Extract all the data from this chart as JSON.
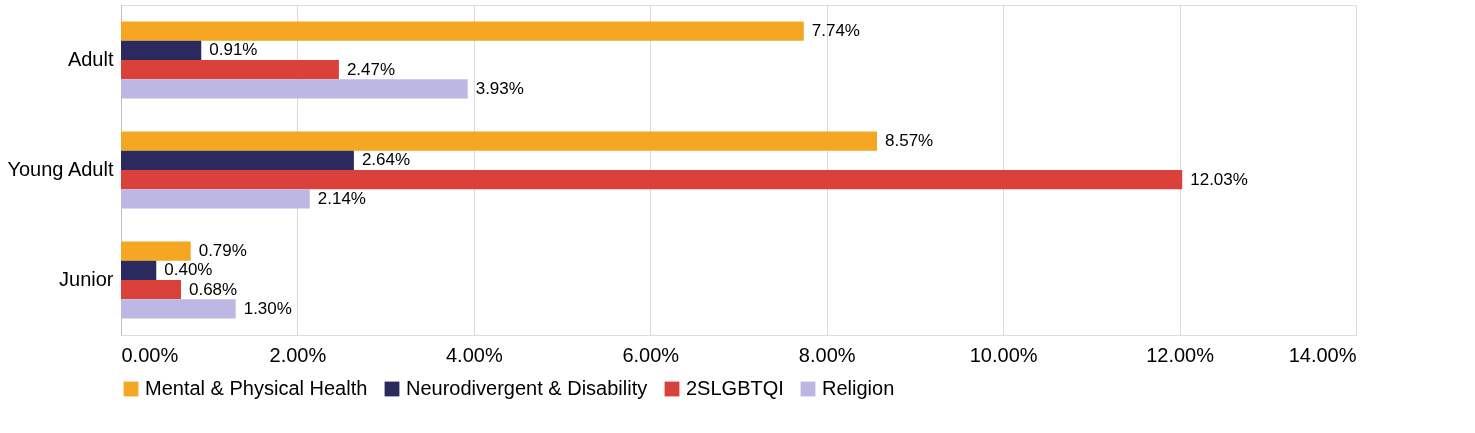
{
  "chart_data": {
    "type": "bar",
    "orientation": "horizontal",
    "categories": [
      "Adult",
      "Young Adult",
      "Junior"
    ],
    "series": [
      {
        "name": "Mental & Physical Health",
        "color": "#f5a623",
        "values": [
          7.74,
          8.57,
          0.79
        ],
        "value_labels": [
          "7.74%",
          "8.57%",
          "0.79%"
        ]
      },
      {
        "name": "Neurodivergent & Disability",
        "color": "#2b2a5e",
        "values": [
          0.91,
          2.64,
          0.4
        ],
        "value_labels": [
          "0.91%",
          "2.64%",
          "0.40%"
        ]
      },
      {
        "name": "2SLGBTQI",
        "color": "#d9413a",
        "values": [
          2.47,
          12.03,
          0.68
        ],
        "value_labels": [
          "2.47%",
          "12.03%",
          "0.68%"
        ]
      },
      {
        "name": "Religion",
        "color": "#bdb8e3",
        "values": [
          3.93,
          2.14,
          1.3
        ],
        "value_labels": [
          "3.93%",
          "2.14%",
          "1.30%"
        ]
      }
    ],
    "xlim": [
      0,
      14
    ],
    "xticks": [
      {
        "value": 0,
        "label": "0.00%"
      },
      {
        "value": 2,
        "label": "2.00%"
      },
      {
        "value": 4,
        "label": "4.00%"
      },
      {
        "value": 6,
        "label": "6.00%"
      },
      {
        "value": 8,
        "label": "8.00%"
      },
      {
        "value": 10,
        "label": "10.00%"
      },
      {
        "value": 12,
        "label": "12.00%"
      },
      {
        "value": 14,
        "label": "14.00%"
      }
    ],
    "grid": "x",
    "legend": "bottom"
  }
}
